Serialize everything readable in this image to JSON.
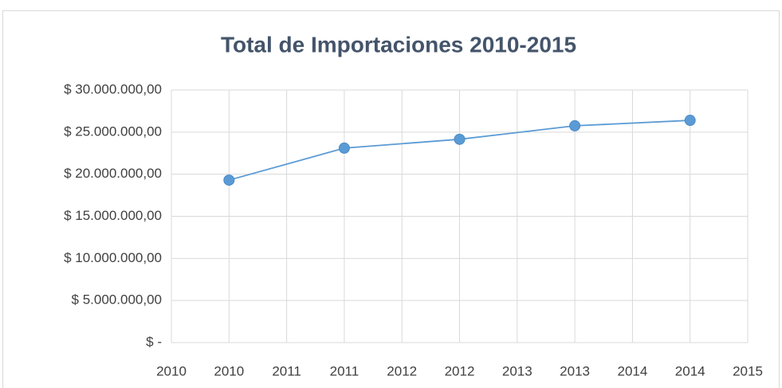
{
  "chart_data": {
    "type": "line",
    "title": "Total de Importaciones  2010-2015",
    "x": [
      2010.5,
      2011.5,
      2012.5,
      2013.5,
      2014.5
    ],
    "series": [
      {
        "name": "Total de Importaciones",
        "color": "#5b9bd5",
        "values": [
          19300000,
          23100000,
          24150000,
          25750000,
          26400000
        ]
      }
    ],
    "xlim": [
      2010,
      2015
    ],
    "xticks": [
      {
        "value": 2010,
        "label": "2010"
      },
      {
        "value": 2010.5,
        "label": "2010"
      },
      {
        "value": 2011,
        "label": "2011"
      },
      {
        "value": 2011.5,
        "label": "2011"
      },
      {
        "value": 2012,
        "label": "2012"
      },
      {
        "value": 2012.5,
        "label": "2012"
      },
      {
        "value": 2013,
        "label": "2013"
      },
      {
        "value": 2013.5,
        "label": "2013"
      },
      {
        "value": 2014,
        "label": "2014"
      },
      {
        "value": 2014.5,
        "label": "2014"
      },
      {
        "value": 2015,
        "label": "2015"
      }
    ],
    "ylim": [
      0,
      30000000
    ],
    "yticks": [
      {
        "value": 0,
        "label": "$ -"
      },
      {
        "value": 5000000,
        "label": "$ 5.000.000,00"
      },
      {
        "value": 10000000,
        "label": "$ 10.000.000,00"
      },
      {
        "value": 15000000,
        "label": "$ 15.000.000,00"
      },
      {
        "value": 20000000,
        "label": "$ 20.000.000,00"
      },
      {
        "value": 25000000,
        "label": "$ 25.000.000,00"
      },
      {
        "value": 30000000,
        "label": "$ 30.000.000,00"
      }
    ],
    "grid": true
  }
}
